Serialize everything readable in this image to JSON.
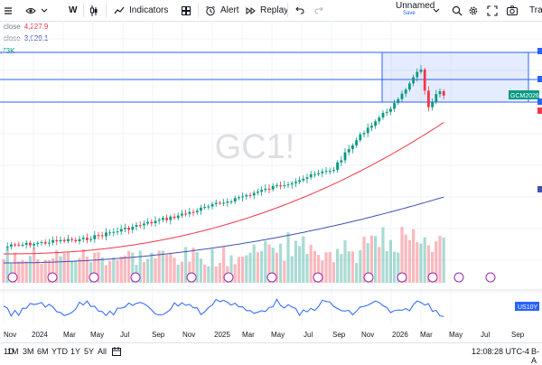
{
  "toolbar": {
    "interval": "W",
    "indicators_label": "Indicators",
    "alert_label": "Alert",
    "replay_label": "Replay",
    "layout_name": "Unnamed",
    "layout_status": "Save",
    "trade_label": "Tra"
  },
  "legend": [
    {
      "label": "close",
      "value": "4,227.9",
      "color": "#f23645"
    },
    {
      "label": "close",
      "value": "3,029.1",
      "color": "#3f51b5"
    },
    {
      "label": "",
      "value": ",73K",
      "color": "#089981"
    }
  ],
  "watermark": "GC1!",
  "price_labels": {
    "front": "GCM2026",
    "bond": "US10Y"
  },
  "time_axis": [
    "Nov",
    "2024",
    "Mar",
    "May",
    "Jul",
    "Sep",
    "Nov",
    "2025",
    "Mar",
    "May",
    "Jul",
    "Sep",
    "Nov",
    "2026",
    "Mar",
    "May",
    "Jul",
    "Sep"
  ],
  "ranges": [
    "1D",
    "5D",
    "1M",
    "3M",
    "6M",
    "YTD",
    "1Y",
    "5Y",
    "All"
  ],
  "clock": "12:08:28 UTC-4",
  "bottom_right": "B-A",
  "colors": {
    "up": "#089981",
    "down": "#f23645",
    "ma_fast": "#f23645",
    "ma_slow": "#3f51b5",
    "oscillator": "#2962ff",
    "box": "#2962ff"
  },
  "chart_data": {
    "type": "line",
    "symbol": "GC1!",
    "timeframe": "W",
    "grid": true,
    "series": [
      {
        "name": "close",
        "last": "4,227.9"
      },
      {
        "name": "close",
        "last": "3,029.1"
      }
    ],
    "x": [
      "Nov",
      "2024",
      "Mar",
      "May",
      "Jul",
      "Sep",
      "Nov",
      "2025",
      "Mar",
      "May",
      "Jul",
      "Sep",
      "Nov",
      "2026",
      "Mar",
      "May"
    ]
  }
}
